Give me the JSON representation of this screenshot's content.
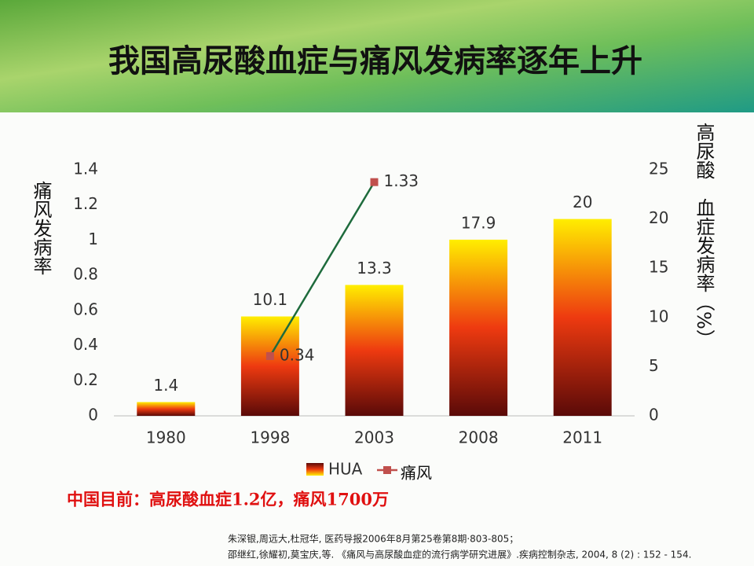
{
  "chart_data": {
    "type": "bar",
    "title": "我国高尿酸血症与痛风发病率逐年上升",
    "categories": [
      "1980",
      "1998",
      "2003",
      "2008",
      "2011"
    ],
    "series": [
      {
        "name": "HUA",
        "type": "bar",
        "axis": "y2",
        "color": "#e8320f",
        "values": [
          1.4,
          10.1,
          13.3,
          17.9,
          20
        ]
      },
      {
        "name": "痛风",
        "type": "line",
        "color": "#1e6b3c",
        "values": [
          null,
          0.34,
          1.33,
          null,
          null
        ]
      }
    ],
    "ylabel": "痛风发病率",
    "y2label": "高尿酸　血症发病率（%）",
    "ylim": [
      0,
      1.4
    ],
    "yticks": [
      0,
      0.2,
      0.4,
      0.6,
      0.8,
      1,
      1.2,
      1.4
    ],
    "y2lim": [
      0,
      25
    ],
    "y2ticks": [
      0,
      5,
      10,
      15,
      20,
      25
    ],
    "grid": false,
    "legend": "bottom"
  },
  "note": "中国目前：高尿酸血症1.2亿，痛风1700万",
  "references": [
    "朱深银,周远大,杜冠华, 医药导报2006年8月第25卷第8期·803-805；",
    "邵继红,徐耀初,莫宝庆,等. 《痛风与高尿酸血症的流行病学研究进展》.疾病控制杂志, 2004, 8 (2) : 152 - 154."
  ]
}
